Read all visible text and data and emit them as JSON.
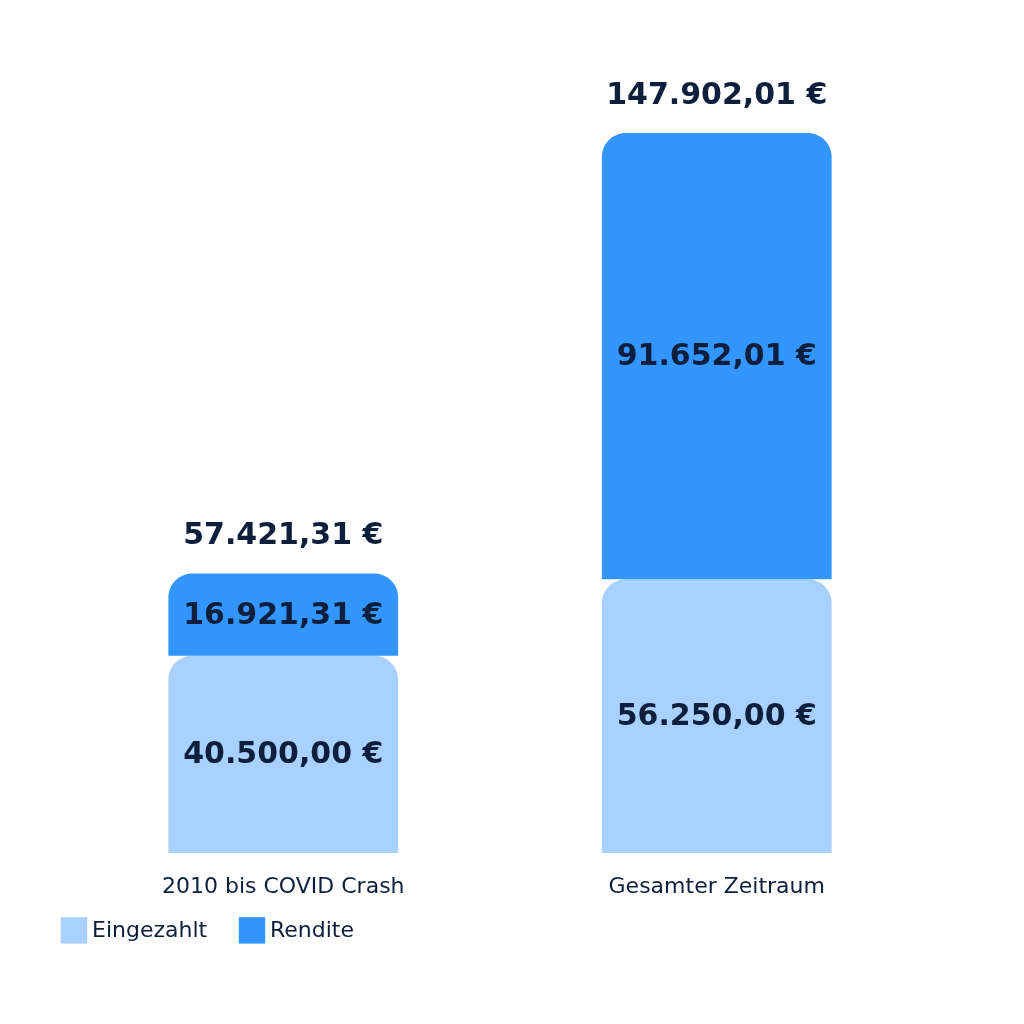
{
  "chart_data": {
    "type": "bar",
    "stacked": true,
    "categories": [
      "2010 bis COVID Crash",
      "Gesamter Zeitraum"
    ],
    "series": [
      {
        "name": "Eingezahlt",
        "color": "#a8d1ff",
        "values": [
          40500.0,
          56250.0
        ],
        "value_labels": [
          "40.500,00 €",
          "56.250,00 €"
        ]
      },
      {
        "name": "Rendite",
        "color": "#3396ff",
        "values": [
          16921.31,
          91652.01
        ],
        "value_labels": [
          "16.921,31 €",
          "91.652,01 €"
        ]
      }
    ],
    "totals": [
      "57.421,31 €",
      "147.902,01 €"
    ],
    "legend": "bottom",
    "grid": false
  }
}
